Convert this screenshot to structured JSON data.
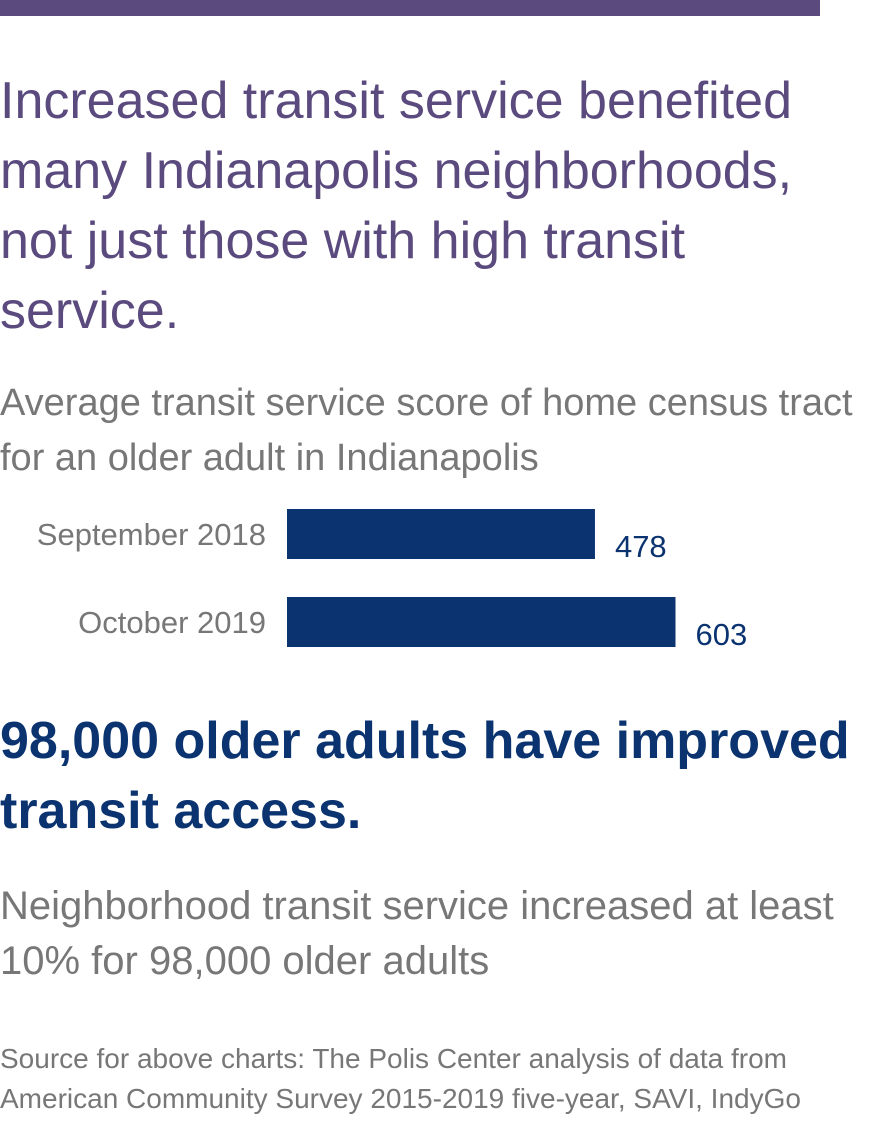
{
  "colors": {
    "accent_purple": "#5a4a7e",
    "bar_navy": "#0b3370",
    "gray_text": "#777777"
  },
  "headline": "Increased transit service benefited many Indianapolis neighborhoods, not just those with high transit service.",
  "chart_data": {
    "type": "bar",
    "orientation": "horizontal",
    "title": "Average transit service score of home census tract for an older adult in Indianapolis",
    "categories": [
      "September 2018",
      "October 2019"
    ],
    "values": [
      478,
      603
    ],
    "data_labels": [
      "478",
      "603"
    ],
    "xlabel": "",
    "ylabel": "",
    "xlim": [
      0,
      610
    ],
    "grid": false,
    "legend": "none"
  },
  "stat": {
    "headline": "98,000 older adults have improved transit access.",
    "detail": "Neighborhood transit service increased at least 10% for 98,000 older adults"
  },
  "source": "Source for above charts: The Polis Center analysis of data from American Community Survey 2015-2019 five-year, SAVI, IndyGo"
}
